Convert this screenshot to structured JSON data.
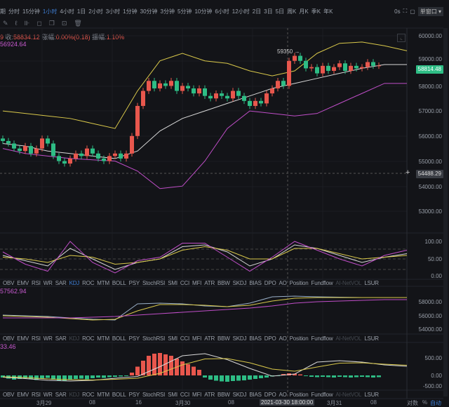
{
  "toolbar": {
    "period_prefix": "期",
    "timeframes": [
      "分时",
      "15分钟",
      "1小时",
      "4小时",
      "1日",
      "2小时",
      "3小时",
      "1分钟",
      "30分钟",
      "3分钟",
      "5分钟",
      "10分钟",
      "6小时",
      "12小时",
      "2日",
      "3日",
      "5日",
      "周K",
      "月K",
      "季K",
      "年K"
    ],
    "active_index": 2,
    "countdown": "0s",
    "window_mode": "单窗口"
  },
  "drawing_tools": [
    "pencil-icon",
    "brush-icon",
    "ruler-icon",
    "lock-icon",
    "copy-icon",
    "screenshot-icon",
    "trash-icon"
  ],
  "info": {
    "prefix": "9",
    "close_label": "收:",
    "close": "58834.12",
    "change_label": "涨幅:",
    "change": "0.00%(0.18)",
    "amp_label": "振幅:",
    "amp": "1.10%",
    "ma_value": "56924.64"
  },
  "main_axis": [
    "60000.00",
    "59000.00",
    "58000.00",
    "57000.00",
    "56000.00",
    "55000.00",
    "54000.00",
    "53000.00"
  ],
  "last_price": "58814.48",
  "cross_price": "54488.29",
  "high_marker": "59350 →",
  "kdj_axis": [
    "100.00",
    "50.00",
    "0.00"
  ],
  "indicator_tabs": [
    "OBV",
    "EMV",
    "RSI",
    "WR",
    "SAR",
    "KDJ",
    "ROC",
    "MTM",
    "BOLL",
    "PSY",
    "StochRSI",
    "SMI",
    "CCI",
    "MFI",
    "ATR",
    "BBW",
    "SKDJ",
    "BIAS",
    "DPO",
    "AO",
    "Position",
    "Fundflow",
    "AI-NetVOL",
    "LSUR"
  ],
  "ma_pane": {
    "label": "57562.94",
    "axis": [
      "58000.00",
      "56000.00",
      "54000.00"
    ]
  },
  "macd_pane": {
    "label": "33.46",
    "axis": [
      "500.00",
      "0.00",
      "-500.00"
    ]
  },
  "xaxis": {
    "labels": [
      "3月29",
      "08",
      "16",
      "3月30",
      "08",
      "3月31",
      "08"
    ],
    "cross_time": "2021-03-30 18:00:00",
    "log_label": "对数",
    "pct_label": "%",
    "auto_label": "自动"
  },
  "colors": {
    "up": "#e8574d",
    "down": "#2ebd85",
    "upper": "#d9c84a",
    "mid": "#d8d8d8",
    "lower": "#c04ec8",
    "bg": "#131418"
  },
  "chart_data": {
    "type": "candlestick",
    "closes": [
      55800,
      55700,
      55500,
      55400,
      55600,
      55300,
      55500,
      55900,
      55700,
      55200,
      55000,
      54900,
      55100,
      55300,
      55200,
      55500,
      55300,
      55100,
      55000,
      55200,
      55300,
      55100,
      55300,
      56000,
      57200,
      57800,
      58200,
      57900,
      58100,
      58000,
      58200,
      57800,
      58000,
      57900,
      57700,
      57900,
      57600,
      57500,
      57700,
      57600,
      57500,
      57800,
      57600,
      57400,
      57200,
      57400,
      57300,
      57700,
      57900,
      58200,
      58000,
      59000,
      59200,
      59000,
      58700,
      58750,
      58500,
      58800,
      58600,
      58750,
      58900,
      58600,
      58800,
      58700,
      58750,
      58950,
      58800,
      58814
    ],
    "boll_upper": [
      57000,
      56900,
      56800,
      56700,
      56500,
      56300,
      57800,
      59000,
      59300,
      59000,
      58900,
      58600,
      58400,
      58600,
      59300,
      59700,
      59750,
      59600,
      59400
    ],
    "boll_mid": [
      55700,
      55600,
      55400,
      55300,
      55200,
      55100,
      55400,
      56200,
      56700,
      57000,
      57300,
      57600,
      57900,
      58100,
      58300,
      58500,
      58700,
      58850,
      58850
    ],
    "boll_lower": [
      55500,
      55300,
      55200,
      55100,
      55050,
      55000,
      54600,
      53900,
      54000,
      55000,
      56300,
      57000,
      56900,
      56800,
      56900,
      57300,
      57700,
      58100,
      58100
    ],
    "kdj": {
      "k": [
        60,
        45,
        30,
        80,
        50,
        20,
        40,
        50,
        85,
        90,
        70,
        30,
        50,
        90,
        80,
        60,
        40,
        55,
        65
      ],
      "d": [
        55,
        50,
        40,
        60,
        55,
        35,
        40,
        50,
        75,
        85,
        75,
        50,
        50,
        80,
        80,
        65,
        50,
        55,
        60
      ],
      "j": [
        70,
        35,
        15,
        100,
        40,
        10,
        45,
        55,
        95,
        95,
        55,
        15,
        55,
        100,
        75,
        50,
        30,
        60,
        75
      ]
    },
    "ma": {
      "a": [
        56100,
        56000,
        55900,
        55700,
        55500,
        55400,
        57700,
        57800,
        57700,
        57400,
        57300,
        57800,
        58700,
        58800,
        58700,
        58650,
        58600,
        58600,
        58600
      ],
      "b": [
        56000,
        55900,
        55800,
        55600,
        55400,
        55500,
        56700,
        57600,
        57600,
        57500,
        57300,
        57500,
        58100,
        58500,
        58600,
        58600,
        58600,
        58600,
        58600
      ],
      "c": [
        55700,
        55700,
        55700,
        55700,
        55800,
        55900,
        56100,
        56300,
        56500,
        56700,
        56900,
        57100,
        57400,
        57800,
        58000,
        58100,
        58200,
        58300,
        58300
      ]
    },
    "macd_hist": [
      -60,
      -90,
      -120,
      -100,
      -80,
      -110,
      -130,
      -90,
      -70,
      -120,
      -150,
      -160,
      -130,
      -100,
      -90,
      -110,
      -80,
      -60,
      -70,
      -50,
      -40,
      -30,
      -20,
      80,
      250,
      420,
      560,
      620,
      640,
      600,
      560,
      480,
      400,
      320,
      250,
      160,
      -60,
      -120,
      -150,
      -170,
      -180,
      -160,
      -150,
      -140,
      -120,
      -100,
      -80,
      -60,
      -30,
      -10,
      40,
      60,
      50,
      30,
      -20,
      -40,
      -50,
      -40,
      -50,
      -60,
      -40,
      -50,
      -60,
      -50,
      -40,
      -50,
      -60,
      -50
    ],
    "macd_dif": [
      -50,
      -90,
      -140,
      -160,
      -140,
      -80,
      -30,
      250,
      560,
      620,
      450,
      200,
      -20,
      40,
      380,
      420,
      380,
      300,
      260
    ],
    "macd_dea": [
      -40,
      -60,
      -100,
      -120,
      -130,
      -110,
      -80,
      60,
      300,
      470,
      480,
      360,
      180,
      120,
      240,
      350,
      360,
      320,
      290
    ]
  }
}
